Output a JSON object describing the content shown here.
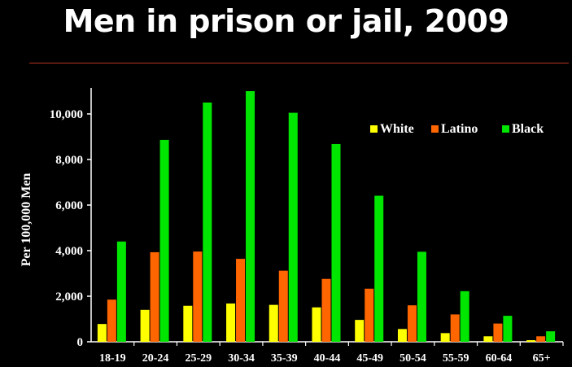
{
  "title": "Men in prison or jail, 2009",
  "chart_data": {
    "type": "bar",
    "title": "Men in prison or jail, 2009",
    "xlabel": "",
    "ylabel": "Per 100,000 Men",
    "ylim": [
      0,
      11000
    ],
    "yticks": [
      0,
      2000,
      4000,
      6000,
      8000,
      10000
    ],
    "ytick_labels": [
      "0",
      "2,000",
      "4,000",
      "6,000",
      "8,000",
      "10,000"
    ],
    "legend_position": "top-right",
    "grid": false,
    "categories": [
      "18-19",
      "20-24",
      "25-29",
      "30-34",
      "35-39",
      "40-44",
      "45-49",
      "50-54",
      "55-59",
      "60-64",
      "65+"
    ],
    "series": [
      {
        "name": "White",
        "color": "#ffff00",
        "values": [
          780,
          1400,
          1580,
          1680,
          1620,
          1510,
          960,
          560,
          380,
          240,
          70
        ]
      },
      {
        "name": "Latino",
        "color": "#ff6600",
        "values": [
          1850,
          3930,
          3960,
          3640,
          3120,
          2760,
          2330,
          1600,
          1200,
          800,
          240
        ]
      },
      {
        "name": "Black",
        "color": "#00e600",
        "values": [
          4400,
          8860,
          10500,
          11000,
          10050,
          8680,
          6410,
          3950,
          2220,
          1140,
          460
        ]
      }
    ]
  }
}
